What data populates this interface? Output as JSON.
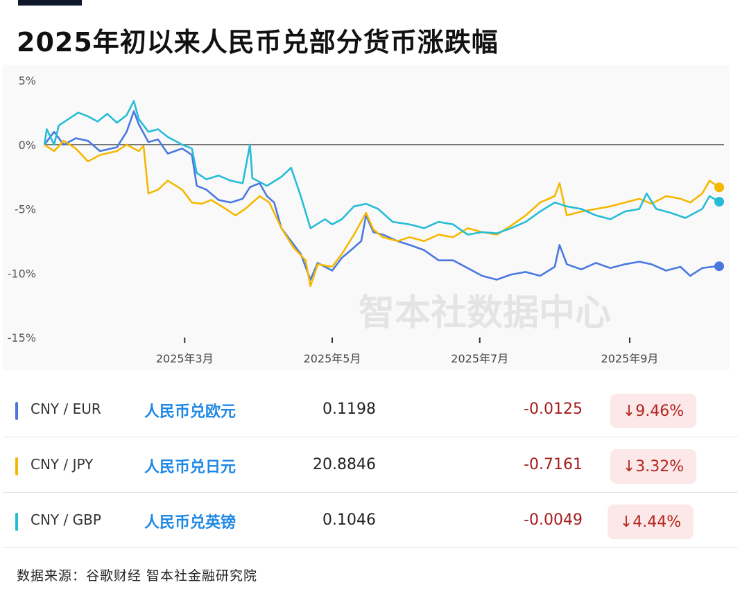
{
  "title": "2025年初以来人民币兑部分货币涨跌幅",
  "watermark": "智本社数据中心",
  "chart_data": {
    "type": "line",
    "ylim": [
      -15,
      5
    ],
    "yticks": [
      5,
      0,
      -5,
      -10,
      -15
    ],
    "ytick_labels": [
      "5%",
      "0%",
      "-5%",
      "-10%",
      "-15%"
    ],
    "xlim": [
      "2025-01-02",
      "2025-10-10"
    ],
    "xticks": [
      {
        "date": "2025-03-01",
        "label": "2025年3月"
      },
      {
        "date": "2025-05-01",
        "label": "2025年5月"
      },
      {
        "date": "2025-07-01",
        "label": "2025年7月"
      },
      {
        "date": "2025-09-01",
        "label": "2025年9月"
      }
    ],
    "zero_line": true,
    "series": [
      {
        "name": "CNY / EUR",
        "color": "#4a78e0",
        "points": [
          [
            "2025-01-02",
            0.0
          ],
          [
            "2025-01-06",
            1.0
          ],
          [
            "2025-01-10",
            0.0
          ],
          [
            "2025-01-15",
            0.5
          ],
          [
            "2025-01-20",
            0.3
          ],
          [
            "2025-01-25",
            -0.5
          ],
          [
            "2025-02-01",
            -0.2
          ],
          [
            "2025-02-05",
            1.0
          ],
          [
            "2025-02-08",
            2.6
          ],
          [
            "2025-02-10",
            1.6
          ],
          [
            "2025-02-14",
            0.2
          ],
          [
            "2025-02-18",
            0.4
          ],
          [
            "2025-02-22",
            -0.7
          ],
          [
            "2025-02-28",
            -0.3
          ],
          [
            "2025-03-04",
            -0.8
          ],
          [
            "2025-03-06",
            -3.2
          ],
          [
            "2025-03-10",
            -3.5
          ],
          [
            "2025-03-15",
            -4.3
          ],
          [
            "2025-03-20",
            -4.5
          ],
          [
            "2025-03-25",
            -4.2
          ],
          [
            "2025-03-28",
            -3.3
          ],
          [
            "2025-04-01",
            -3.0
          ],
          [
            "2025-04-04",
            -4.0
          ],
          [
            "2025-04-07",
            -4.5
          ],
          [
            "2025-04-10",
            -6.5
          ],
          [
            "2025-04-14",
            -7.5
          ],
          [
            "2025-04-18",
            -8.5
          ],
          [
            "2025-04-22",
            -10.5
          ],
          [
            "2025-04-25",
            -9.2
          ],
          [
            "2025-05-01",
            -9.8
          ],
          [
            "2025-05-05",
            -8.8
          ],
          [
            "2025-05-10",
            -8.0
          ],
          [
            "2025-05-13",
            -7.5
          ],
          [
            "2025-05-15",
            -5.5
          ],
          [
            "2025-05-18",
            -6.8
          ],
          [
            "2025-05-22",
            -7.0
          ],
          [
            "2025-05-28",
            -7.5
          ],
          [
            "2025-06-02",
            -7.8
          ],
          [
            "2025-06-08",
            -8.2
          ],
          [
            "2025-06-14",
            -9.0
          ],
          [
            "2025-06-20",
            -9.0
          ],
          [
            "2025-06-26",
            -9.6
          ],
          [
            "2025-07-02",
            -10.2
          ],
          [
            "2025-07-08",
            -10.5
          ],
          [
            "2025-07-14",
            -10.1
          ],
          [
            "2025-07-20",
            -9.9
          ],
          [
            "2025-07-26",
            -10.2
          ],
          [
            "2025-08-01",
            -9.5
          ],
          [
            "2025-08-03",
            -7.8
          ],
          [
            "2025-08-06",
            -9.3
          ],
          [
            "2025-08-12",
            -9.7
          ],
          [
            "2025-08-18",
            -9.2
          ],
          [
            "2025-08-24",
            -9.6
          ],
          [
            "2025-08-30",
            -9.3
          ],
          [
            "2025-09-05",
            -9.1
          ],
          [
            "2025-09-10",
            -9.3
          ],
          [
            "2025-09-16",
            -9.8
          ],
          [
            "2025-09-22",
            -9.5
          ],
          [
            "2025-09-26",
            -10.2
          ],
          [
            "2025-10-01",
            -9.6
          ],
          [
            "2025-10-05",
            -9.5
          ],
          [
            "2025-10-08",
            -9.46
          ]
        ]
      },
      {
        "name": "CNY / JPY",
        "color": "#f5b800",
        "points": [
          [
            "2025-01-02",
            0.0
          ],
          [
            "2025-01-06",
            -0.5
          ],
          [
            "2025-01-10",
            0.3
          ],
          [
            "2025-01-15",
            -0.3
          ],
          [
            "2025-01-20",
            -1.3
          ],
          [
            "2025-01-25",
            -0.8
          ],
          [
            "2025-02-01",
            -0.5
          ],
          [
            "2025-02-05",
            0.0
          ],
          [
            "2025-02-10",
            -0.5
          ],
          [
            "2025-02-12",
            -0.1
          ],
          [
            "2025-02-14",
            -3.8
          ],
          [
            "2025-02-18",
            -3.5
          ],
          [
            "2025-02-22",
            -2.8
          ],
          [
            "2025-02-28",
            -3.5
          ],
          [
            "2025-03-04",
            -4.5
          ],
          [
            "2025-03-08",
            -4.6
          ],
          [
            "2025-03-12",
            -4.3
          ],
          [
            "2025-03-18",
            -5.0
          ],
          [
            "2025-03-22",
            -5.5
          ],
          [
            "2025-03-26",
            -5.0
          ],
          [
            "2025-04-01",
            -4.0
          ],
          [
            "2025-04-05",
            -4.5
          ],
          [
            "2025-04-10",
            -6.5
          ],
          [
            "2025-04-15",
            -8.0
          ],
          [
            "2025-04-20",
            -9.0
          ],
          [
            "2025-04-22",
            -11.0
          ],
          [
            "2025-04-25",
            -9.3
          ],
          [
            "2025-05-01",
            -9.5
          ],
          [
            "2025-05-05",
            -8.5
          ],
          [
            "2025-05-10",
            -7.0
          ],
          [
            "2025-05-15",
            -5.3
          ],
          [
            "2025-05-18",
            -6.6
          ],
          [
            "2025-05-22",
            -7.2
          ],
          [
            "2025-05-28",
            -7.5
          ],
          [
            "2025-06-02",
            -7.2
          ],
          [
            "2025-06-08",
            -7.5
          ],
          [
            "2025-06-14",
            -7.0
          ],
          [
            "2025-06-20",
            -7.2
          ],
          [
            "2025-06-26",
            -6.5
          ],
          [
            "2025-07-02",
            -6.8
          ],
          [
            "2025-07-08",
            -7.0
          ],
          [
            "2025-07-14",
            -6.3
          ],
          [
            "2025-07-20",
            -5.5
          ],
          [
            "2025-07-26",
            -4.5
          ],
          [
            "2025-08-01",
            -4.0
          ],
          [
            "2025-08-03",
            -3.0
          ],
          [
            "2025-08-06",
            -5.5
          ],
          [
            "2025-08-12",
            -5.2
          ],
          [
            "2025-08-18",
            -5.0
          ],
          [
            "2025-08-24",
            -4.8
          ],
          [
            "2025-08-30",
            -4.5
          ],
          [
            "2025-09-05",
            -4.2
          ],
          [
            "2025-09-10",
            -4.6
          ],
          [
            "2025-09-16",
            -4.0
          ],
          [
            "2025-09-22",
            -4.2
          ],
          [
            "2025-09-26",
            -4.5
          ],
          [
            "2025-10-01",
            -3.8
          ],
          [
            "2025-10-04",
            -2.8
          ],
          [
            "2025-10-08",
            -3.32
          ]
        ]
      },
      {
        "name": "CNY / GBP",
        "color": "#26bcd7",
        "points": [
          [
            "2025-01-02",
            0.0
          ],
          [
            "2025-01-03",
            1.2
          ],
          [
            "2025-01-06",
            0.0
          ],
          [
            "2025-01-08",
            1.5
          ],
          [
            "2025-01-12",
            2.0
          ],
          [
            "2025-01-16",
            2.5
          ],
          [
            "2025-01-20",
            2.2
          ],
          [
            "2025-01-24",
            1.8
          ],
          [
            "2025-01-28",
            2.4
          ],
          [
            "2025-02-01",
            1.7
          ],
          [
            "2025-02-05",
            2.3
          ],
          [
            "2025-02-08",
            3.4
          ],
          [
            "2025-02-10",
            2.0
          ],
          [
            "2025-02-14",
            1.0
          ],
          [
            "2025-02-18",
            1.2
          ],
          [
            "2025-02-22",
            0.6
          ],
          [
            "2025-02-28",
            0.0
          ],
          [
            "2025-03-04",
            -0.3
          ],
          [
            "2025-03-06",
            -2.2
          ],
          [
            "2025-03-10",
            -2.7
          ],
          [
            "2025-03-15",
            -2.4
          ],
          [
            "2025-03-20",
            -2.8
          ],
          [
            "2025-03-25",
            -3.0
          ],
          [
            "2025-03-28",
            0.0
          ],
          [
            "2025-03-29",
            -2.6
          ],
          [
            "2025-04-04",
            -3.2
          ],
          [
            "2025-04-10",
            -2.5
          ],
          [
            "2025-04-14",
            -1.8
          ],
          [
            "2025-04-18",
            -4.0
          ],
          [
            "2025-04-22",
            -6.5
          ],
          [
            "2025-04-28",
            -5.8
          ],
          [
            "2025-05-01",
            -6.2
          ],
          [
            "2025-05-05",
            -5.8
          ],
          [
            "2025-05-10",
            -4.8
          ],
          [
            "2025-05-15",
            -4.6
          ],
          [
            "2025-05-20",
            -5.0
          ],
          [
            "2025-05-26",
            -6.0
          ],
          [
            "2025-06-02",
            -6.2
          ],
          [
            "2025-06-08",
            -6.5
          ],
          [
            "2025-06-14",
            -6.0
          ],
          [
            "2025-06-20",
            -6.2
          ],
          [
            "2025-06-26",
            -7.0
          ],
          [
            "2025-07-02",
            -6.8
          ],
          [
            "2025-07-08",
            -6.9
          ],
          [
            "2025-07-14",
            -6.5
          ],
          [
            "2025-07-20",
            -6.0
          ],
          [
            "2025-07-26",
            -5.2
          ],
          [
            "2025-08-01",
            -4.5
          ],
          [
            "2025-08-06",
            -4.8
          ],
          [
            "2025-08-12",
            -5.0
          ],
          [
            "2025-08-18",
            -5.5
          ],
          [
            "2025-08-24",
            -5.8
          ],
          [
            "2025-08-30",
            -5.2
          ],
          [
            "2025-09-05",
            -5.0
          ],
          [
            "2025-09-08",
            -3.8
          ],
          [
            "2025-09-12",
            -5.0
          ],
          [
            "2025-09-18",
            -5.3
          ],
          [
            "2025-09-24",
            -5.7
          ],
          [
            "2025-10-01",
            -5.0
          ],
          [
            "2025-10-04",
            -4.0
          ],
          [
            "2025-10-08",
            -4.44
          ]
        ]
      }
    ]
  },
  "rows": [
    {
      "pair": "CNY / EUR",
      "cn": "人民币兑欧元",
      "rate": "0.1198",
      "change": "-0.0125",
      "pct": "↓9.46%",
      "color": "#4a78e0"
    },
    {
      "pair": "CNY / JPY",
      "cn": "人民币兑日元",
      "rate": "20.8846",
      "change": "-0.7161",
      "pct": "↓3.32%",
      "color": "#f5b800"
    },
    {
      "pair": "CNY / GBP",
      "cn": "人民币兑英镑",
      "rate": "0.1046",
      "change": "-0.0049",
      "pct": "↓4.44%",
      "color": "#26bcd7"
    }
  ],
  "source": "数据来源：谷歌财经 智本社金融研究院"
}
